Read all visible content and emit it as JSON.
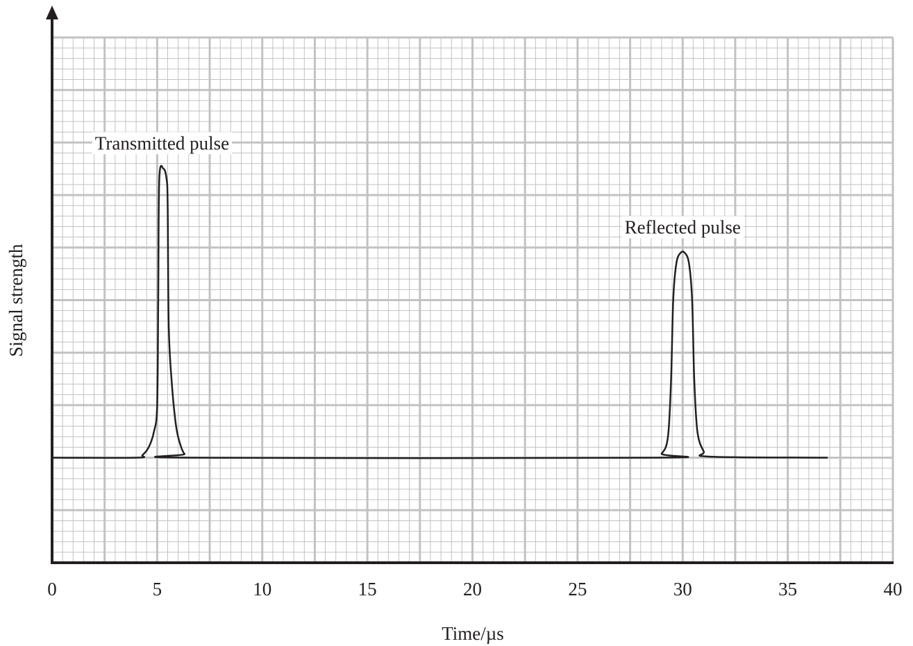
{
  "chart_data": {
    "type": "line",
    "title": "",
    "xlabel": "Time/µs",
    "ylabel": "Signal strength",
    "xlim": [
      0,
      40
    ],
    "ylim": [
      0,
      10
    ],
    "x_ticks": [
      "0",
      "5",
      "10",
      "15",
      "20",
      "25",
      "30",
      "35",
      "40"
    ],
    "grid": true,
    "series": [
      {
        "x": [
          0,
          4,
          4.3,
          4.6,
          4.85,
          5.0,
          5.05,
          5.1,
          5.3,
          5.45,
          5.5,
          5.55,
          5.7,
          5.9,
          6.1,
          6.3,
          6.6,
          28.5,
          29.0,
          29.3,
          29.45,
          29.55,
          29.7,
          29.9,
          30.1,
          30.3,
          30.45,
          30.55,
          30.7,
          31.0,
          31.3,
          36.9
        ],
        "y": [
          2,
          2,
          2.05,
          2.2,
          2.5,
          3.0,
          5.0,
          7.3,
          7.5,
          7.3,
          6.8,
          4.5,
          3.4,
          2.6,
          2.25,
          2.07,
          2,
          2,
          2.08,
          2.4,
          3.5,
          5.0,
          5.7,
          5.9,
          5.9,
          5.7,
          5.0,
          3.5,
          2.5,
          2.12,
          2.02,
          2
        ]
      }
    ],
    "annotations": [
      {
        "text": "Transmitted pulse",
        "x": 5.2,
        "y": 7.5
      },
      {
        "text": "Reflected pulse",
        "x": 30.0,
        "y": 5.9
      }
    ],
    "colors": {
      "line": "#231f20",
      "axis": "#231f20",
      "grid_major": "#c2c2c2",
      "grid_minor": "#c2c2c2"
    }
  }
}
